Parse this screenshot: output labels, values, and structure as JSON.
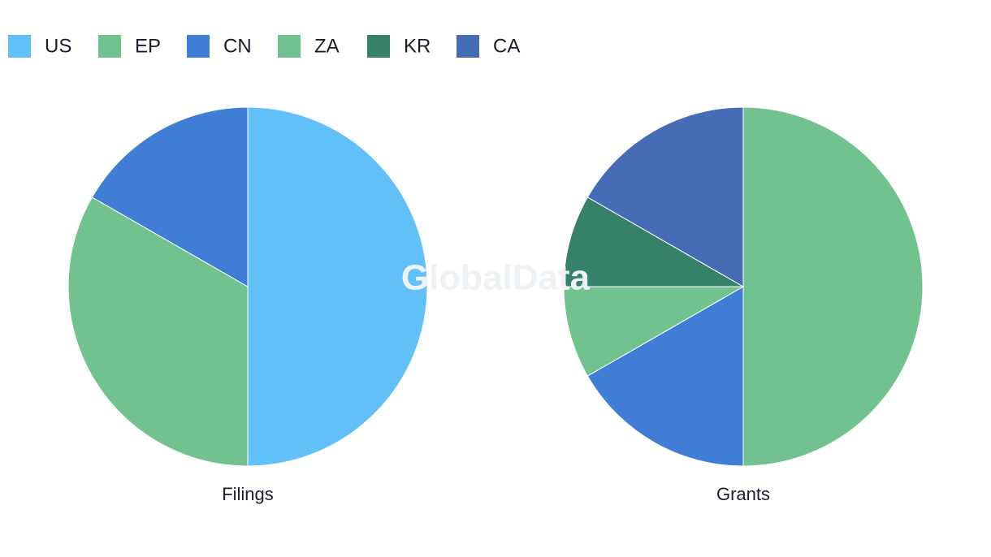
{
  "legend": [
    {
      "name": "US",
      "color": "#62c0f9"
    },
    {
      "name": "EP",
      "color": "#72c290"
    },
    {
      "name": "CN",
      "color": "#407ed6"
    },
    {
      "name": "ZA",
      "color": "#72c290"
    },
    {
      "name": "KR",
      "color": "#37806a"
    },
    {
      "name": "CA",
      "color": "#456cb5"
    }
  ],
  "watermark": "GlobalData",
  "chart_data": [
    {
      "type": "pie",
      "title": "Filings",
      "categories": [
        "US",
        "EP",
        "CN"
      ],
      "values": [
        50,
        33.3,
        16.7
      ],
      "colors": [
        "#62c0f9",
        "#72c290",
        "#407ed6"
      ]
    },
    {
      "type": "pie",
      "title": "Grants",
      "categories": [
        "EP",
        "CN",
        "ZA",
        "KR",
        "CA"
      ],
      "values": [
        50,
        16.7,
        8.3,
        8.3,
        16.7
      ],
      "colors": [
        "#72c290",
        "#407ed6",
        "#72c290",
        "#37806a",
        "#456cb5"
      ]
    }
  ]
}
